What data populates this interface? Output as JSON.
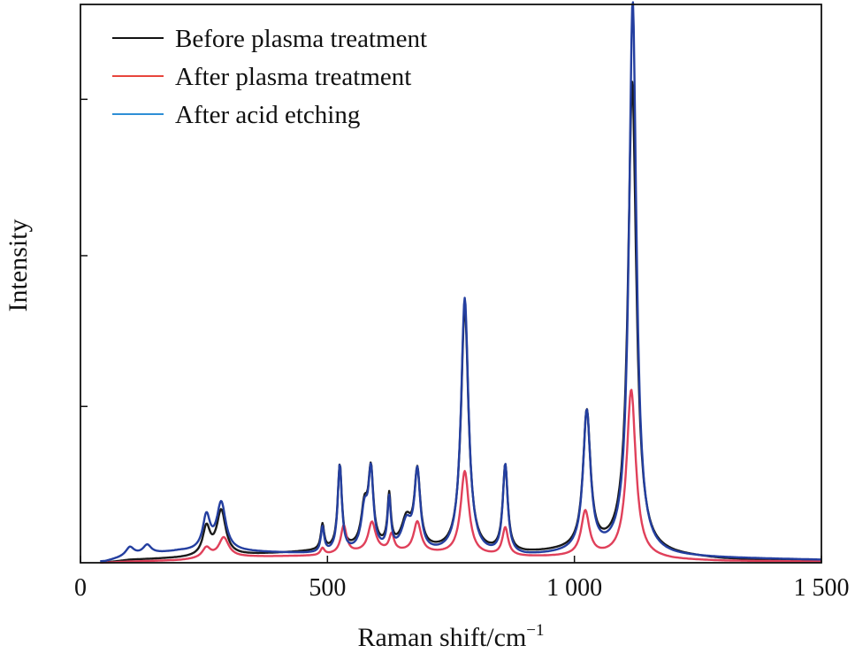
{
  "chart_data": {
    "type": "line",
    "xlabel": "Raman shift/cm",
    "xlabel_sup": "−1",
    "ylabel": "Intensity",
    "xlim": [
      0,
      1500
    ],
    "ylim": [
      0,
      1.0
    ],
    "x_ticks": [
      {
        "value": 0,
        "label": "0"
      },
      {
        "value": 500,
        "label": "500"
      },
      {
        "value": 1000,
        "label": "1 000"
      },
      {
        "value": 1500,
        "label": "1 500"
      }
    ],
    "y_ticks": [
      0.28,
      0.55,
      0.83
    ],
    "y_tick_labels": false,
    "grid": false,
    "legend": {
      "position": "top-left",
      "entries": [
        {
          "label": "Before plasma treatment",
          "color": "#111111"
        },
        {
          "label": "After plasma treatment",
          "color": "#e8453c"
        },
        {
          "label": "After acid etching",
          "color": "#2e8fd6"
        }
      ]
    },
    "series": [
      {
        "name": "Before plasma treatment",
        "color": "#1a1a1a",
        "baseline": [
          [
            0,
            0
          ],
          [
            50,
            0
          ],
          [
            100,
            0.005
          ],
          [
            200,
            0.008
          ],
          [
            300,
            0.012
          ],
          [
            480,
            0.02
          ],
          [
            600,
            0.025
          ],
          [
            800,
            0.015
          ],
          [
            900,
            0.015
          ],
          [
            1000,
            0.02
          ],
          [
            1100,
            0.02
          ],
          [
            1200,
            0.012
          ],
          [
            1300,
            0.006
          ],
          [
            1500,
            0.002
          ]
        ],
        "peaks": [
          {
            "x": 255,
            "h": 0.05,
            "w": 9
          },
          {
            "x": 285,
            "h": 0.08,
            "w": 11
          },
          {
            "x": 490,
            "h": 0.045,
            "w": 4
          },
          {
            "x": 525,
            "h": 0.15,
            "w": 5
          },
          {
            "x": 575,
            "h": 0.07,
            "w": 8
          },
          {
            "x": 588,
            "h": 0.13,
            "w": 6
          },
          {
            "x": 625,
            "h": 0.09,
            "w": 4
          },
          {
            "x": 660,
            "h": 0.05,
            "w": 12
          },
          {
            "x": 682,
            "h": 0.135,
            "w": 7
          },
          {
            "x": 778,
            "h": 0.44,
            "w": 9
          },
          {
            "x": 860,
            "h": 0.155,
            "w": 6
          },
          {
            "x": 1025,
            "h": 0.245,
            "w": 9
          },
          {
            "x": 1117,
            "h": 0.84,
            "w": 10
          }
        ]
      },
      {
        "name": "After plasma treatment",
        "color": "#e0405a",
        "baseline": [
          [
            0,
            0
          ],
          [
            50,
            0
          ],
          [
            100,
            0.002
          ],
          [
            200,
            0.004
          ],
          [
            300,
            0.01
          ],
          [
            480,
            0.012
          ],
          [
            600,
            0.02
          ],
          [
            800,
            0.012
          ],
          [
            900,
            0.01
          ],
          [
            1000,
            0.01
          ],
          [
            1100,
            0.01
          ],
          [
            1200,
            0.005
          ],
          [
            1300,
            0.003
          ],
          [
            1500,
            0.002
          ]
        ],
        "peaks": [
          {
            "x": 255,
            "h": 0.018,
            "w": 10
          },
          {
            "x": 290,
            "h": 0.035,
            "w": 12
          },
          {
            "x": 490,
            "h": 0.012,
            "w": 5
          },
          {
            "x": 533,
            "h": 0.05,
            "w": 7
          },
          {
            "x": 590,
            "h": 0.052,
            "w": 9
          },
          {
            "x": 630,
            "h": 0.03,
            "w": 6
          },
          {
            "x": 682,
            "h": 0.055,
            "w": 9
          },
          {
            "x": 778,
            "h": 0.15,
            "w": 10
          },
          {
            "x": 860,
            "h": 0.05,
            "w": 7
          },
          {
            "x": 1022,
            "h": 0.08,
            "w": 10
          },
          {
            "x": 1115,
            "h": 0.3,
            "w": 11
          }
        ]
      },
      {
        "name": "After acid etching",
        "color": "#243fa0",
        "baseline": [
          [
            0,
            0
          ],
          [
            50,
            0.002
          ],
          [
            100,
            0.012
          ],
          [
            200,
            0.02
          ],
          [
            300,
            0.02
          ],
          [
            480,
            0.015
          ],
          [
            600,
            0.018
          ],
          [
            800,
            0.01
          ],
          [
            900,
            0.01
          ],
          [
            1000,
            0.015
          ],
          [
            1100,
            0.015
          ],
          [
            1200,
            0.01
          ],
          [
            1300,
            0.008
          ],
          [
            1500,
            0.005
          ]
        ],
        "peaks": [
          {
            "x": 100,
            "h": 0.015,
            "w": 10
          },
          {
            "x": 135,
            "h": 0.016,
            "w": 10
          },
          {
            "x": 255,
            "h": 0.06,
            "w": 9
          },
          {
            "x": 285,
            "h": 0.085,
            "w": 11
          },
          {
            "x": 490,
            "h": 0.045,
            "w": 4
          },
          {
            "x": 525,
            "h": 0.155,
            "w": 5
          },
          {
            "x": 575,
            "h": 0.07,
            "w": 8
          },
          {
            "x": 588,
            "h": 0.135,
            "w": 6
          },
          {
            "x": 625,
            "h": 0.09,
            "w": 4
          },
          {
            "x": 660,
            "h": 0.05,
            "w": 12
          },
          {
            "x": 682,
            "h": 0.14,
            "w": 7
          },
          {
            "x": 778,
            "h": 0.46,
            "w": 9
          },
          {
            "x": 860,
            "h": 0.16,
            "w": 6
          },
          {
            "x": 1025,
            "h": 0.25,
            "w": 9
          },
          {
            "x": 1118,
            "h": 0.99,
            "w": 9
          }
        ]
      }
    ]
  }
}
